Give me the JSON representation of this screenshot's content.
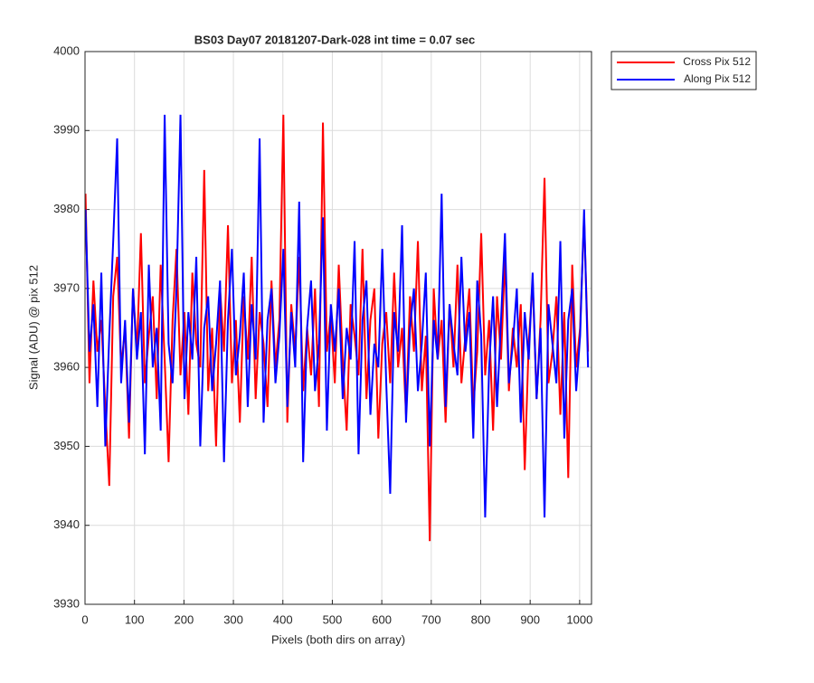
{
  "chart_data": {
    "type": "line",
    "title": "BS03 Day07 20181207-Dark-028 int time = 0.07 sec",
    "xlabel": "Pixels (both dirs on array)",
    "ylabel": "Signal (ADU) @ pix 512",
    "x": [
      1,
      9,
      17,
      25,
      33,
      41,
      49,
      57,
      65,
      73,
      81,
      89,
      97,
      105,
      113,
      121,
      129,
      137,
      145,
      153,
      161,
      169,
      177,
      185,
      193,
      201,
      209,
      217,
      225,
      233,
      241,
      249,
      257,
      265,
      273,
      281,
      289,
      297,
      305,
      313,
      321,
      329,
      337,
      345,
      353,
      361,
      369,
      377,
      385,
      393,
      401,
      409,
      417,
      425,
      433,
      441,
      449,
      457,
      465,
      473,
      481,
      489,
      497,
      505,
      513,
      521,
      529,
      537,
      545,
      553,
      561,
      569,
      577,
      585,
      593,
      601,
      609,
      617,
      625,
      633,
      641,
      649,
      657,
      665,
      673,
      681,
      689,
      697,
      705,
      713,
      721,
      729,
      737,
      745,
      753,
      761,
      769,
      777,
      785,
      793,
      801,
      809,
      817,
      825,
      833,
      841,
      849,
      857,
      865,
      873,
      881,
      889,
      897,
      905,
      913,
      921,
      929,
      937,
      945,
      953,
      961,
      969,
      977,
      985,
      993,
      1001,
      1009,
      1017
    ],
    "series": [
      {
        "name": "Cross Pix 512",
        "color": "#ff0000",
        "values": [
          3982,
          3958,
          3971,
          3962,
          3966,
          3955,
          3945,
          3969,
          3974,
          3960,
          3965,
          3951,
          3970,
          3962,
          3977,
          3958,
          3964,
          3969,
          3956,
          3973,
          3961,
          3948,
          3966,
          3975,
          3959,
          3967,
          3954,
          3972,
          3963,
          3960,
          3985,
          3957,
          3965,
          3950,
          3970,
          3962,
          3978,
          3958,
          3966,
          3953,
          3969,
          3961,
          3974,
          3956,
          3967,
          3963,
          3955,
          3971,
          3960,
          3966,
          3992,
          3953,
          3968,
          3962,
          3974,
          3957,
          3965,
          3959,
          3970,
          3955,
          3991,
          3962,
          3967,
          3958,
          3973,
          3961,
          3952,
          3968,
          3964,
          3959,
          3975,
          3956,
          3966,
          3970,
          3951,
          3963,
          3967,
          3958,
          3972,
          3960,
          3965,
          3954,
          3969,
          3962,
          3976,
          3957,
          3964,
          3938,
          3970,
          3961,
          3966,
          3953,
          3968,
          3960,
          3973,
          3958,
          3964,
          3970,
          3955,
          3962,
          3977,
          3959,
          3966,
          3952,
          3969,
          3961,
          3974,
          3957,
          3965,
          3960,
          3968,
          3947,
          3963,
          3971,
          3956,
          3966,
          3984,
          3958,
          3962,
          3969,
          3954,
          3967,
          3946,
          3973,
          3960,
          3965,
          3979,
          3962
        ]
      },
      {
        "name": "Along Pix 512",
        "color": "#0000ff",
        "values": [
          3980,
          3962,
          3968,
          3955,
          3972,
          3950,
          3964,
          3976,
          3989,
          3958,
          3966,
          3953,
          3970,
          3961,
          3967,
          3949,
          3973,
          3960,
          3965,
          3952,
          3992,
          3963,
          3958,
          3970,
          3992,
          3956,
          3967,
          3961,
          3974,
          3950,
          3965,
          3969,
          3957,
          3963,
          3971,
          3948,
          3966,
          3975,
          3959,
          3964,
          3972,
          3955,
          3968,
          3961,
          3989,
          3953,
          3966,
          3970,
          3958,
          3964,
          3975,
          3955,
          3967,
          3960,
          3981,
          3948,
          3965,
          3971,
          3957,
          3963,
          3979,
          3952,
          3968,
          3962,
          3970,
          3956,
          3965,
          3961,
          3976,
          3949,
          3966,
          3971,
          3954,
          3963,
          3960,
          3975,
          3958,
          3944,
          3967,
          3962,
          3978,
          3953,
          3965,
          3970,
          3957,
          3963,
          3972,
          3950,
          3966,
          3961,
          3982,
          3955,
          3968,
          3963,
          3959,
          3974,
          3962,
          3967,
          3951,
          3971,
          3964,
          3941,
          3960,
          3969,
          3955,
          3966,
          3977,
          3958,
          3963,
          3970,
          3953,
          3967,
          3961,
          3972,
          3956,
          3965,
          3941,
          3968,
          3963,
          3958,
          3976,
          3951,
          3966,
          3970,
          3957,
          3964,
          3980,
          3960
        ]
      }
    ],
    "xlim": [
      0,
      1024
    ],
    "xticks": [
      0,
      100,
      200,
      300,
      400,
      500,
      600,
      700,
      800,
      900,
      1000
    ],
    "ylim": [
      3930,
      4000
    ],
    "yticks": [
      3930,
      3940,
      3950,
      3960,
      3970,
      3980,
      3990,
      4000
    ],
    "grid": true,
    "legend": "northeastoutside"
  }
}
